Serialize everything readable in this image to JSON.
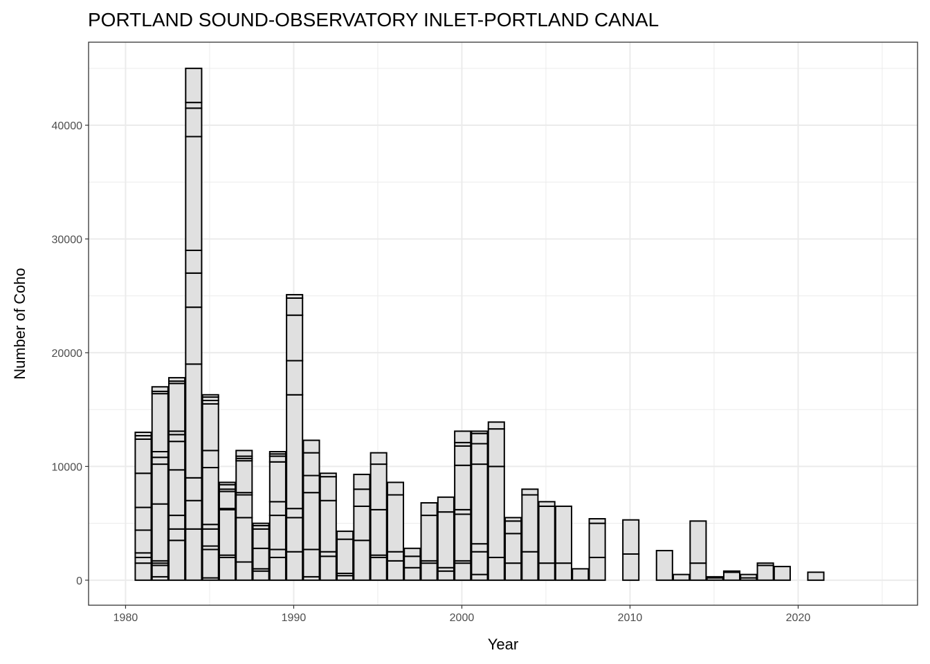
{
  "chart_data": {
    "type": "bar",
    "stacked": true,
    "title": "PORTLAND SOUND-OBSERVATORY INLET-PORTLAND CANAL",
    "xlabel": "Year",
    "ylabel": "Number of Coho",
    "xlim": [
      1977.8,
      2027.1
    ],
    "ylim": [
      -2200,
      47300
    ],
    "x_ticks": [
      1980,
      1990,
      2000,
      2010,
      2020
    ],
    "y_ticks": [
      0,
      10000,
      20000,
      30000,
      40000
    ],
    "grid": true,
    "fill_color": "#e0e0e0",
    "edge_color": "#000000",
    "bars": [
      {
        "year": 1981,
        "cumulative": [
          1500,
          2000,
          2400,
          4400,
          6400,
          9400,
          12400,
          12700,
          13000
        ]
      },
      {
        "year": 1982,
        "cumulative": [
          300,
          1300,
          1500,
          1700,
          6700,
          10200,
          10800,
          11300,
          16400,
          16600,
          17000
        ]
      },
      {
        "year": 1983,
        "cumulative": [
          3500,
          4500,
          5700,
          9700,
          12200,
          12800,
          13100,
          17300,
          17500,
          17800
        ]
      },
      {
        "year": 1984,
        "cumulative": [
          4500,
          7000,
          9000,
          19000,
          24000,
          27000,
          29000,
          39000,
          41500,
          42000,
          45000
        ]
      },
      {
        "year": 1985,
        "cumulative": [
          200,
          2700,
          3000,
          4500,
          4900,
          9900,
          11400,
          15500,
          15800,
          16100,
          16300
        ]
      },
      {
        "year": 1986,
        "cumulative": [
          2000,
          2200,
          6200,
          6300,
          7800,
          8000,
          8400,
          8600
        ]
      },
      {
        "year": 1987,
        "cumulative": [
          1600,
          5500,
          7500,
          7700,
          10500,
          10700,
          10900,
          11400
        ]
      },
      {
        "year": 1988,
        "cumulative": [
          800,
          1000,
          2800,
          4500,
          4800,
          5000
        ]
      },
      {
        "year": 1989,
        "cumulative": [
          2000,
          2700,
          5700,
          6900,
          10400,
          10900,
          11100,
          11300
        ]
      },
      {
        "year": 1990,
        "cumulative": [
          2500,
          5500,
          6300,
          16300,
          19300,
          23300,
          24800,
          25100
        ]
      },
      {
        "year": 1991,
        "cumulative": [
          300,
          2700,
          7700,
          9200,
          11200,
          12300
        ]
      },
      {
        "year": 1992,
        "cumulative": [
          2100,
          2500,
          7000,
          9100,
          9400
        ]
      },
      {
        "year": 1993,
        "cumulative": [
          400,
          600,
          3600,
          4300
        ]
      },
      {
        "year": 1994,
        "cumulative": [
          3500,
          6500,
          8000,
          9300
        ]
      },
      {
        "year": 1995,
        "cumulative": [
          2000,
          2200,
          6200,
          10200,
          11200
        ]
      },
      {
        "year": 1996,
        "cumulative": [
          1700,
          2500,
          7500,
          8600
        ]
      },
      {
        "year": 1997,
        "cumulative": [
          1100,
          2100,
          2800
        ]
      },
      {
        "year": 1998,
        "cumulative": [
          1500,
          1700,
          5700,
          6800
        ]
      },
      {
        "year": 1999,
        "cumulative": [
          800,
          1100,
          6000,
          7300
        ]
      },
      {
        "year": 2000,
        "cumulative": [
          1500,
          1700,
          5800,
          6200,
          10100,
          11800,
          12100,
          13100
        ]
      },
      {
        "year": 2001,
        "cumulative": [
          500,
          2500,
          3200,
          10200,
          12000,
          12900,
          13100
        ]
      },
      {
        "year": 2002,
        "cumulative": [
          2000,
          10000,
          13300,
          13900
        ]
      },
      {
        "year": 2003,
        "cumulative": [
          1500,
          4100,
          5200,
          5500
        ]
      },
      {
        "year": 2004,
        "cumulative": [
          2500,
          7500,
          8000
        ]
      },
      {
        "year": 2005,
        "cumulative": [
          1500,
          6500,
          6900
        ]
      },
      {
        "year": 2006,
        "cumulative": [
          1500,
          6500
        ]
      },
      {
        "year": 2007,
        "cumulative": [
          1000
        ]
      },
      {
        "year": 2008,
        "cumulative": [
          2000,
          5000,
          5400
        ]
      },
      {
        "year": 2010,
        "cumulative": [
          2300,
          5300
        ]
      },
      {
        "year": 2012,
        "cumulative": [
          2600
        ]
      },
      {
        "year": 2013,
        "cumulative": [
          500
        ]
      },
      {
        "year": 2014,
        "cumulative": [
          1500,
          5200
        ]
      },
      {
        "year": 2015,
        "cumulative": [
          200,
          300
        ]
      },
      {
        "year": 2016,
        "cumulative": [
          700,
          800
        ]
      },
      {
        "year": 2017,
        "cumulative": [
          200,
          500
        ]
      },
      {
        "year": 2018,
        "cumulative": [
          1300,
          1500
        ]
      },
      {
        "year": 2019,
        "cumulative": [
          1200
        ]
      },
      {
        "year": 2021,
        "cumulative": [
          700
        ]
      }
    ]
  }
}
